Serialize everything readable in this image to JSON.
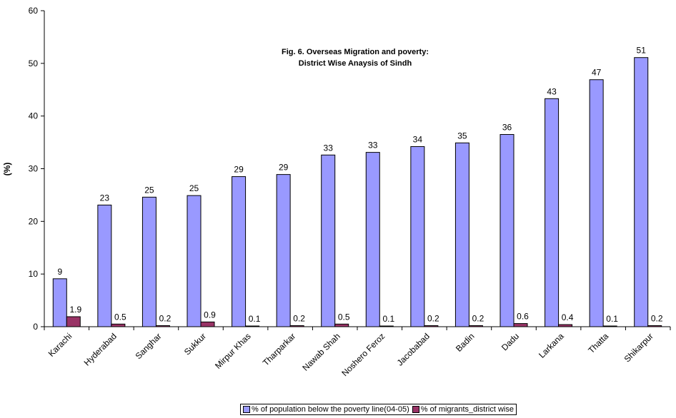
{
  "chart_data": {
    "type": "bar",
    "title_lines": [
      "Fig. 6. Overseas Migration and poverty:",
      "District Wise Anaysis of Sindh"
    ],
    "ylabel": "(%)",
    "xlabel": "",
    "ylim": [
      0,
      60
    ],
    "yticks": [
      0,
      10,
      20,
      30,
      40,
      50,
      60
    ],
    "grid": false,
    "legend_position": "bottom",
    "categories": [
      "Karachi",
      "Hyderabad",
      "Sanghar",
      "Sukkur",
      "Mirpur Khas",
      "Tharparkar",
      "Nawab Shah",
      "Noshero Feroz",
      "Jacobabad",
      "Badin",
      "Dadu",
      "Larkana",
      "Thatta",
      "Shikarpur"
    ],
    "series": [
      {
        "name": "% of population below the poverty line(04-05)",
        "color": "#9999ff",
        "values": [
          9.1,
          23.1,
          24.6,
          24.9,
          28.5,
          28.9,
          32.6,
          33.1,
          34.2,
          34.9,
          36.5,
          43.3,
          46.9,
          51.1
        ],
        "labels": [
          "9",
          "23",
          "25",
          "25",
          "29",
          "29",
          "33",
          "33",
          "34",
          "35",
          "36",
          "43",
          "47",
          "51"
        ]
      },
      {
        "name": "% of migrants_district wise",
        "color": "#993366",
        "values": [
          1.9,
          0.5,
          0.2,
          0.9,
          0.1,
          0.2,
          0.5,
          0.1,
          0.2,
          0.2,
          0.6,
          0.4,
          0.1,
          0.2
        ],
        "labels": [
          "1.9",
          "0.5",
          "0.2",
          "0.9",
          "0.1",
          "0.2",
          "0.5",
          "0.1",
          "0.2",
          "0.2",
          "0.6",
          "0.4",
          "0.1",
          "0.2"
        ]
      }
    ]
  }
}
